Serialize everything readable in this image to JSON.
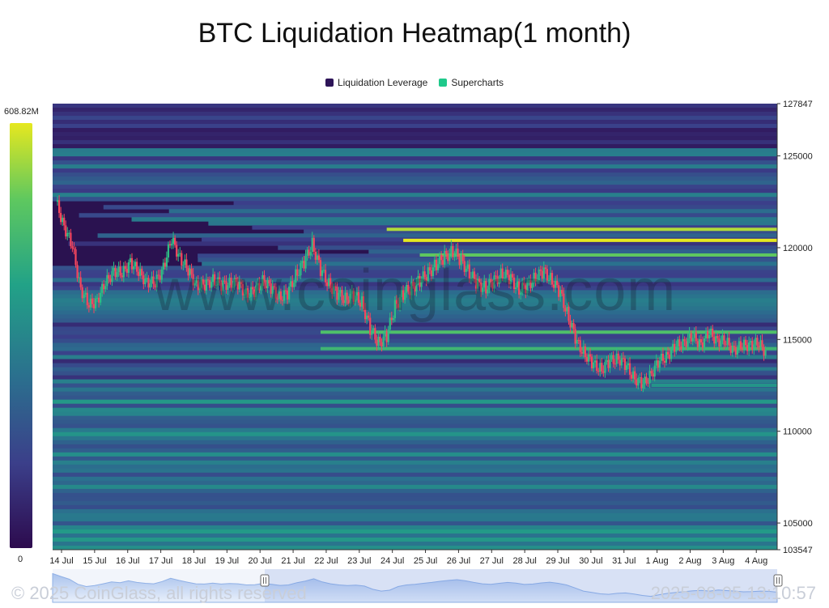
{
  "title": "BTC Liquidation Heatmap(1 month)",
  "legend": [
    {
      "label": "Liquidation Leverage",
      "color": "#2d1458"
    },
    {
      "label": "Supercharts",
      "color": "#1fc98b"
    }
  ],
  "colorscale": {
    "max_label": "608.82M",
    "min_label": "0",
    "colors": [
      "#2d0b4e",
      "#3b3f8a",
      "#2b6f8e",
      "#22a287",
      "#5ec85f",
      "#e6e81f"
    ]
  },
  "watermark": "www.coinglass.com",
  "footer": {
    "copyright": "© 2025 CoinGlass, all rights reserved",
    "timestamp": "2025-08-05 13:10:57"
  },
  "chart_data": {
    "type": "heatmap",
    "title": "BTC Liquidation Heatmap(1 month)",
    "x_tick_labels": [
      "14 Jul",
      "15 Jul",
      "16 Jul",
      "17 Jul",
      "18 Jul",
      "19 Jul",
      "20 Jul",
      "21 Jul",
      "22 Jul",
      "23 Jul",
      "24 Jul",
      "25 Jul",
      "26 Jul",
      "27 Jul",
      "28 Jul",
      "29 Jul",
      "30 Jul",
      "31 Jul",
      "1 Aug",
      "2 Aug",
      "3 Aug",
      "4 Aug"
    ],
    "y_ticks": [
      105000,
      110000,
      115000,
      120000,
      125000
    ],
    "y_range": [
      103547,
      127847
    ],
    "y_range_labels": [
      "103547",
      "127847"
    ],
    "colorscale_range": [
      0,
      608.82
    ],
    "colorscale_unit": "M",
    "price_series": {
      "name": "BTC price",
      "x_days": [
        0,
        0.25,
        0.5,
        0.75,
        1,
        1.25,
        1.5,
        1.75,
        2,
        2.25,
        2.5,
        2.75,
        3,
        3.25,
        3.5,
        3.75,
        4,
        4.25,
        4.5,
        4.75,
        5,
        5.25,
        5.5,
        5.75,
        6,
        6.25,
        6.5,
        6.75,
        7,
        7.25,
        7.5,
        7.75,
        8,
        8.25,
        8.5,
        8.75,
        9,
        9.25,
        9.5,
        9.75,
        10,
        10.25,
        10.5,
        10.75,
        11,
        11.25,
        11.5,
        11.75,
        12,
        12.25,
        12.5,
        12.75,
        13,
        13.25,
        13.5,
        13.75,
        14,
        14.25,
        14.5,
        14.75,
        15,
        15.25,
        15.5,
        15.75,
        16,
        16.25,
        16.5,
        16.75,
        17,
        17.25,
        17.5,
        17.75,
        18,
        18.25,
        18.5,
        18.75,
        19,
        19.25,
        19.5,
        19.75,
        20,
        20.25,
        20.5,
        20.75,
        21,
        21.25,
        21.5
      ],
      "values": [
        122500,
        121200,
        120000,
        117800,
        116800,
        117200,
        118000,
        118800,
        118500,
        119300,
        118600,
        118200,
        118000,
        119000,
        120400,
        119500,
        118700,
        118000,
        117900,
        118300,
        117900,
        118100,
        118000,
        117500,
        117600,
        118200,
        117800,
        117300,
        117500,
        118500,
        119200,
        120200,
        118800,
        118000,
        117500,
        117200,
        117400,
        117000,
        115600,
        114800,
        115200,
        116800,
        117500,
        117800,
        118200,
        118600,
        119100,
        119500,
        119800,
        119300,
        118600,
        118000,
        117800,
        118200,
        118600,
        118300,
        117700,
        117900,
        118400,
        118700,
        118200,
        117500,
        116200,
        114800,
        114200,
        113600,
        113400,
        113800,
        114000,
        113500,
        112900,
        112500,
        113200,
        113800,
        114200,
        114600,
        114900,
        115100,
        114800,
        115300,
        115000,
        114800,
        114500,
        114600,
        114800,
        114700,
        114300
      ]
    },
    "highlight_bands": [
      {
        "price": 121000,
        "level": 0.92
      },
      {
        "price": 120400,
        "level": 1.0
      },
      {
        "price": 119600,
        "level": 0.8
      },
      {
        "price": 115400,
        "level": 0.75
      },
      {
        "price": 114500,
        "level": 0.7
      },
      {
        "price": 113400,
        "level": 0.45
      },
      {
        "price": 112500,
        "level": 0.55
      }
    ]
  }
}
